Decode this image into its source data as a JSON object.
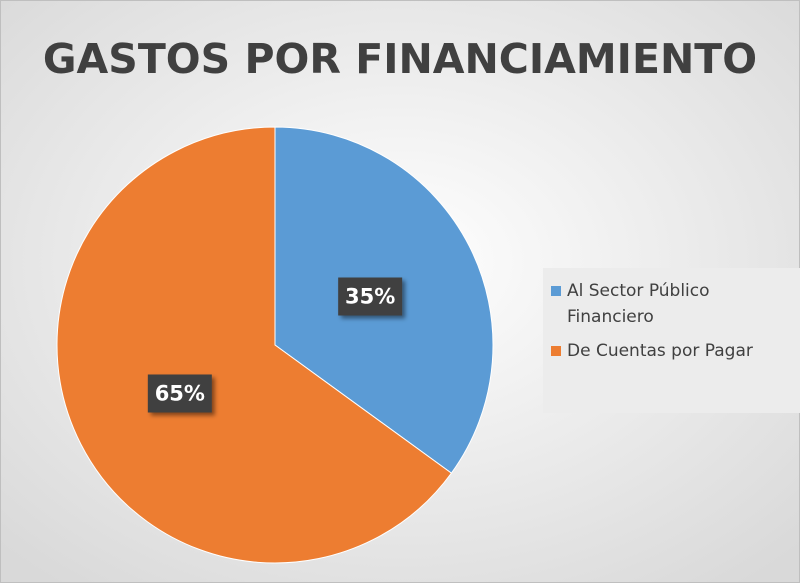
{
  "chart_data": {
    "type": "pie",
    "title": "GASTOS POR FINANCIAMIENTO",
    "categories": [
      "Al Sector Público Financiero",
      "De Cuentas por Pagar"
    ],
    "values": [
      35,
      65
    ],
    "value_labels": [
      "35%",
      "65%"
    ],
    "colors": [
      "#5b9bd5",
      "#ed7d31"
    ],
    "legend": "right"
  }
}
